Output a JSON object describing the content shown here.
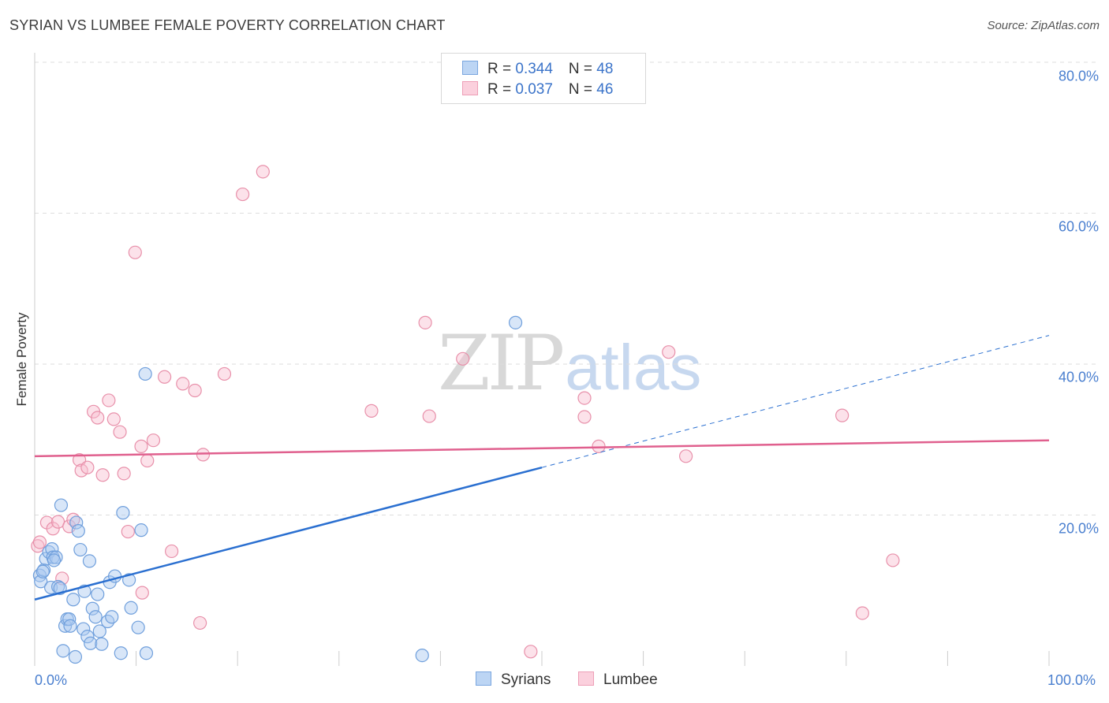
{
  "header": {
    "title": "SYRIAN VS LUMBEE FEMALE POVERTY CORRELATION CHART",
    "source": "Source: ZipAtlas.com"
  },
  "watermark": {
    "zip": "ZIP",
    "atlas": "atlas"
  },
  "legend": {
    "rows": [
      {
        "r_label": "R = ",
        "r_value": "0.344",
        "n_label": "N = ",
        "n_value": "48"
      },
      {
        "r_label": "R = ",
        "r_value": "0.037",
        "n_label": "N = ",
        "n_value": "46"
      }
    ]
  },
  "colors": {
    "syrians_fill": "#a9c8f0",
    "syrians_stroke": "#6f9fdc",
    "syrians_line": "#2a6fd0",
    "lumbee_fill": "#f8bfd0",
    "lumbee_stroke": "#e890aa",
    "lumbee_line": "#e0608e",
    "grid": "#dddddd",
    "axis_text": "#4a7fcf"
  },
  "chart_data": {
    "type": "scatter",
    "title": "SYRIAN VS LUMBEE FEMALE POVERTY CORRELATION CHART",
    "xlabel": "",
    "ylabel": "Female Poverty",
    "xlim": [
      0,
      100
    ],
    "ylim": [
      0,
      80
    ],
    "x_tick_labels": [
      "0.0%",
      "100.0%"
    ],
    "y_ticks": [
      20,
      40,
      60,
      80
    ],
    "y_tick_labels": [
      "20.0%",
      "40.0%",
      "60.0%",
      "80.0%"
    ],
    "grid": true,
    "legend_position": "top-center",
    "series": [
      {
        "name": "Syrians",
        "r": 0.344,
        "n": 48,
        "trend": {
          "x_start": 0,
          "y_start": 8.8,
          "x_solid_end": 50,
          "y_solid_end": 26.3,
          "x_end": 100,
          "y_end": 43.8
        },
        "points": [
          [
            0.5,
            12
          ],
          [
            0.6,
            11.2
          ],
          [
            0.9,
            12.7
          ],
          [
            1.1,
            14.2
          ],
          [
            1.4,
            15.1
          ],
          [
            1.6,
            10.4
          ],
          [
            1.7,
            15.5
          ],
          [
            1.8,
            14.4
          ],
          [
            2.1,
            14.4
          ],
          [
            2.3,
            10.5
          ],
          [
            2.5,
            10.3
          ],
          [
            2.6,
            21.3
          ],
          [
            2.8,
            2.0
          ],
          [
            3.0,
            5.3
          ],
          [
            3.2,
            6.2
          ],
          [
            3.4,
            6.2
          ],
          [
            3.5,
            5.3
          ],
          [
            3.8,
            8.8
          ],
          [
            4.0,
            1.2
          ],
          [
            4.1,
            19.0
          ],
          [
            4.3,
            17.9
          ],
          [
            4.5,
            15.4
          ],
          [
            4.8,
            4.9
          ],
          [
            4.9,
            9.9
          ],
          [
            5.2,
            3.9
          ],
          [
            5.4,
            13.9
          ],
          [
            5.5,
            3.0
          ],
          [
            5.7,
            7.6
          ],
          [
            6.0,
            6.5
          ],
          [
            6.2,
            9.5
          ],
          [
            6.4,
            4.6
          ],
          [
            6.6,
            2.9
          ],
          [
            7.2,
            5.9
          ],
          [
            7.4,
            11.1
          ],
          [
            7.6,
            6.5
          ],
          [
            7.9,
            11.9
          ],
          [
            8.5,
            1.7
          ],
          [
            8.7,
            20.3
          ],
          [
            9.3,
            11.4
          ],
          [
            9.5,
            7.7
          ],
          [
            10.2,
            5.1
          ],
          [
            10.5,
            18.0
          ],
          [
            10.9,
            38.7
          ],
          [
            11.0,
            1.7
          ],
          [
            38.2,
            1.4
          ],
          [
            47.4,
            45.5
          ],
          [
            0.8,
            12.5
          ],
          [
            1.9,
            14.0
          ]
        ]
      },
      {
        "name": "Lumbee",
        "r": 0.037,
        "n": 46,
        "trend": {
          "x_start": 0,
          "y_start": 27.8,
          "x_end": 100,
          "y_end": 29.9
        },
        "points": [
          [
            0.3,
            15.9
          ],
          [
            0.5,
            16.4
          ],
          [
            1.2,
            19.0
          ],
          [
            1.8,
            18.2
          ],
          [
            2.3,
            19.1
          ],
          [
            2.7,
            11.6
          ],
          [
            3.4,
            18.5
          ],
          [
            3.8,
            19.4
          ],
          [
            4.4,
            27.3
          ],
          [
            4.6,
            25.9
          ],
          [
            5.2,
            26.3
          ],
          [
            5.8,
            33.7
          ],
          [
            6.2,
            32.9
          ],
          [
            6.7,
            25.3
          ],
          [
            7.3,
            35.2
          ],
          [
            7.8,
            32.7
          ],
          [
            8.4,
            31.0
          ],
          [
            8.8,
            25.5
          ],
          [
            9.2,
            17.8
          ],
          [
            9.9,
            54.8
          ],
          [
            10.5,
            29.1
          ],
          [
            11.1,
            27.2
          ],
          [
            11.7,
            29.9
          ],
          [
            12.8,
            38.3
          ],
          [
            13.5,
            15.2
          ],
          [
            14.6,
            37.4
          ],
          [
            15.8,
            36.5
          ],
          [
            16.3,
            5.7
          ],
          [
            16.6,
            28.0
          ],
          [
            18.7,
            38.7
          ],
          [
            20.5,
            62.5
          ],
          [
            22.5,
            65.5
          ],
          [
            33.2,
            33.8
          ],
          [
            38.5,
            45.5
          ],
          [
            38.9,
            33.1
          ],
          [
            42.2,
            40.7
          ],
          [
            48.9,
            1.9
          ],
          [
            54.2,
            35.5
          ],
          [
            54.2,
            33.0
          ],
          [
            55.6,
            29.1
          ],
          [
            62.5,
            41.6
          ],
          [
            64.2,
            27.8
          ],
          [
            79.6,
            33.2
          ],
          [
            81.6,
            7.0
          ],
          [
            84.6,
            14.0
          ],
          [
            10.6,
            9.7
          ]
        ]
      }
    ]
  },
  "bottom_legend": {
    "syrians": "Syrians",
    "lumbee": "Lumbee"
  }
}
